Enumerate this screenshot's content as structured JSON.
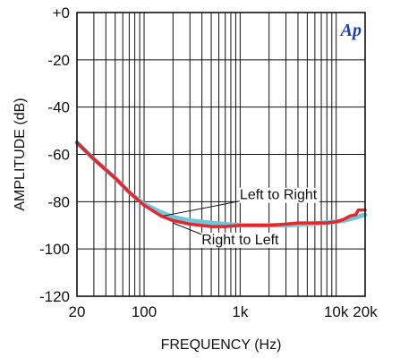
{
  "chart_data": {
    "type": "line",
    "xlabel": "FREQUENCY (Hz)",
    "ylabel": "AMPLITUDE (dB)",
    "x_scale": "log",
    "xlim": [
      20,
      20000
    ],
    "ylim": [
      -120,
      0
    ],
    "grid": true,
    "x_ticks": [
      {
        "value": 20,
        "label": "20"
      },
      {
        "value": 100,
        "label": "100"
      },
      {
        "value": 1000,
        "label": "1k"
      },
      {
        "value": 10000,
        "label": "10k"
      },
      {
        "value": 20000,
        "label": "20k"
      }
    ],
    "y_ticks": [
      {
        "value": 0,
        "label": "+0"
      },
      {
        "value": -20,
        "label": "-20"
      },
      {
        "value": -40,
        "label": "-40"
      },
      {
        "value": -60,
        "label": "-60"
      },
      {
        "value": -80,
        "label": "-80"
      },
      {
        "value": -100,
        "label": "-100"
      },
      {
        "value": -120,
        "label": "-120"
      }
    ],
    "series": [
      {
        "name": "Left to Right",
        "color": "#6ec6d8",
        "points": [
          [
            20,
            -55
          ],
          [
            30,
            -62
          ],
          [
            50,
            -70
          ],
          [
            70,
            -76
          ],
          [
            100,
            -81
          ],
          [
            150,
            -84.5
          ],
          [
            200,
            -86.5
          ],
          [
            300,
            -88
          ],
          [
            500,
            -89
          ],
          [
            700,
            -89.5
          ],
          [
            1000,
            -90
          ],
          [
            2000,
            -90
          ],
          [
            3000,
            -90
          ],
          [
            5000,
            -89.5
          ],
          [
            7000,
            -89
          ],
          [
            10000,
            -88.5
          ],
          [
            12000,
            -88
          ],
          [
            15000,
            -87
          ],
          [
            18000,
            -86
          ],
          [
            20000,
            -85.5
          ]
        ]
      },
      {
        "name": "Right to Left",
        "color": "#e8262a",
        "points": [
          [
            20,
            -55
          ],
          [
            30,
            -62
          ],
          [
            50,
            -70
          ],
          [
            70,
            -76
          ],
          [
            100,
            -81.5
          ],
          [
            150,
            -86
          ],
          [
            200,
            -88
          ],
          [
            300,
            -89.5
          ],
          [
            500,
            -90.5
          ],
          [
            700,
            -90.5
          ],
          [
            1000,
            -90
          ],
          [
            2000,
            -90
          ],
          [
            3000,
            -89.5
          ],
          [
            4000,
            -89
          ],
          [
            6000,
            -89
          ],
          [
            8000,
            -89
          ],
          [
            10000,
            -88.5
          ],
          [
            12000,
            -87.5
          ],
          [
            14000,
            -86
          ],
          [
            16000,
            -85.5
          ],
          [
            17000,
            -83.5
          ],
          [
            20000,
            -83.5
          ]
        ]
      }
    ],
    "annotations": [
      {
        "text": "Left to Right",
        "x": 2500,
        "y": -79,
        "arrow_to": [
          160,
          -86
        ]
      },
      {
        "text": "Right to Left",
        "x": 1000,
        "y": -98,
        "arrow_to": [
          200,
          -89
        ]
      }
    ],
    "logo_text": "Ap"
  }
}
